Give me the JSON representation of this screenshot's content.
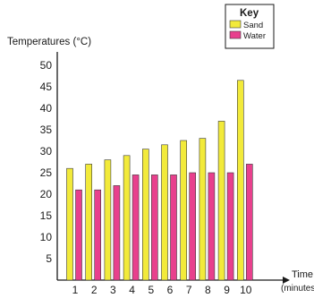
{
  "chart_data": {
    "type": "bar",
    "title": "",
    "ylabel": "Temperatures (°C)",
    "xlabel": "Time (minutes)",
    "ylim": [
      0,
      50
    ],
    "yticks": [
      5,
      10,
      15,
      20,
      25,
      30,
      35,
      40,
      45,
      50
    ],
    "categories": [
      "1",
      "2",
      "3",
      "4",
      "5",
      "6",
      "7",
      "8",
      "9",
      "10"
    ],
    "legend": {
      "title": "Key",
      "position": "top-right"
    },
    "series": [
      {
        "name": "Sand",
        "color": "#f2ea3a",
        "values": [
          26,
          27,
          28,
          29,
          30.5,
          31.5,
          32.5,
          33,
          37,
          46.5
        ]
      },
      {
        "name": "Water",
        "color": "#e8408d",
        "values": [
          21,
          21,
          22,
          24.5,
          24.5,
          24.5,
          25,
          25,
          25,
          27
        ]
      }
    ],
    "grid": false
  }
}
